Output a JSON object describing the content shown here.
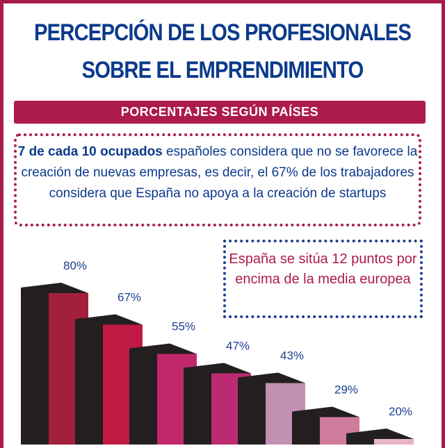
{
  "title": {
    "line1": "PERCEPCIÓN DE LOS PROFESIONALES",
    "line2": "SOBRE EL EMPRENDIMIENTO"
  },
  "banner": "PORCENTAJES  SEGÚN PAÍSES",
  "info": {
    "bold": "7 de cada 10 ocupados",
    "rest": " españoles considera que no se favorece la creación de nuevas empresas, es decir, el 67% de los trabajadores considera que España no apoya a la creación de startups"
  },
  "note": "España se sitúa 12 puntos por encima de la media europea",
  "colors": {
    "border": "#a81c4c",
    "title": "#0b3a8c",
    "bar_back": "#231f20"
  },
  "chart_data": {
    "type": "bar",
    "categories": [],
    "values": [
      80,
      67,
      55,
      47,
      43,
      29,
      20
    ],
    "labels": [
      "80%",
      "67%",
      "55%",
      "47%",
      "43%",
      "29%",
      "20%"
    ],
    "colors": [
      "#a3203c",
      "#c01a44",
      "#c2276c",
      "#bc2a72",
      "#c190b2",
      "#cf7c9c",
      "#e6b3c9"
    ],
    "style": "3d",
    "grid": false
  }
}
